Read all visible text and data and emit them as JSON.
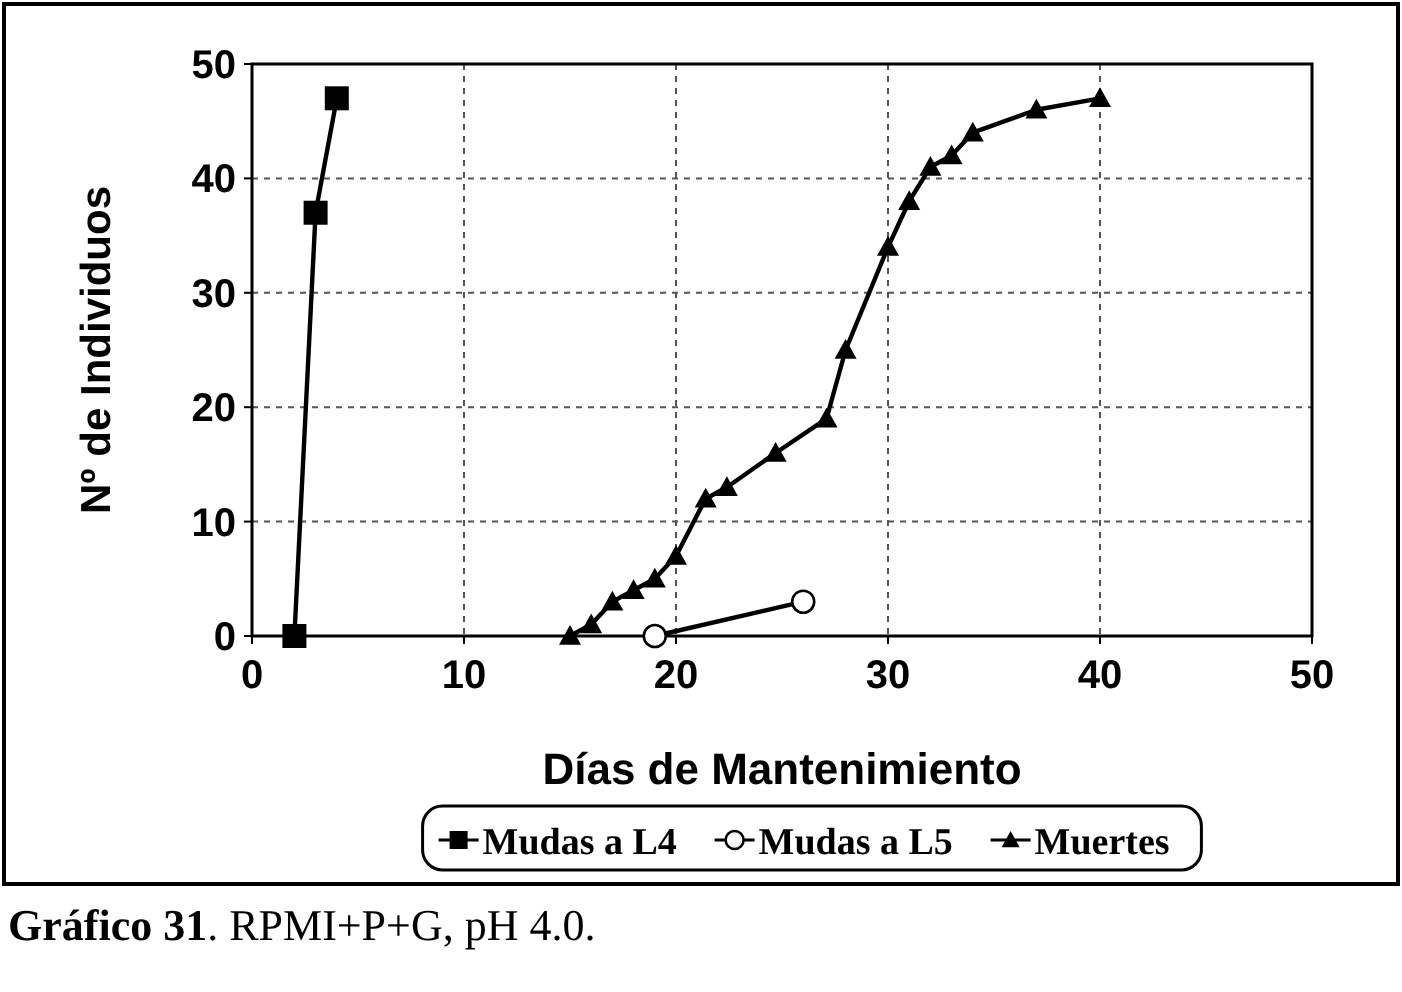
{
  "chart_data": {
    "type": "line",
    "xlabel": "Días de Mantenimiento",
    "ylabel": "Nº de Individuos",
    "xlim": [
      0,
      50
    ],
    "xticks": [
      0,
      10,
      20,
      30,
      40,
      50
    ],
    "ylim": [
      0,
      50
    ],
    "yticks": [
      0,
      10,
      20,
      30,
      40,
      50
    ],
    "grid": true,
    "legend": "bottom",
    "line_style": "solid",
    "series": [
      {
        "name": "Mudas a L4",
        "color": "#000000",
        "marker": "square",
        "x": [
          2,
          3,
          4
        ],
        "values": [
          0,
          37,
          47
        ]
      },
      {
        "name": "Mudas a L5",
        "color": "#000000",
        "marker": "circle",
        "x": [
          19,
          26
        ],
        "values": [
          0,
          3
        ]
      },
      {
        "name": "Muertes",
        "color": "#000000",
        "marker": "triangle",
        "x": [
          15,
          16,
          17,
          18,
          19,
          20,
          21.4,
          22.4,
          24.7,
          27.1,
          28,
          30,
          31,
          32,
          33,
          34,
          37,
          40
        ],
        "values": [
          0,
          1,
          3,
          4,
          5,
          7,
          12,
          13,
          16,
          19,
          25,
          34,
          38,
          41,
          42,
          44,
          46,
          47
        ]
      }
    ],
    "annotations": [
      "Gráfico 31. RPMI+P+G, pH 4.0."
    ]
  }
}
